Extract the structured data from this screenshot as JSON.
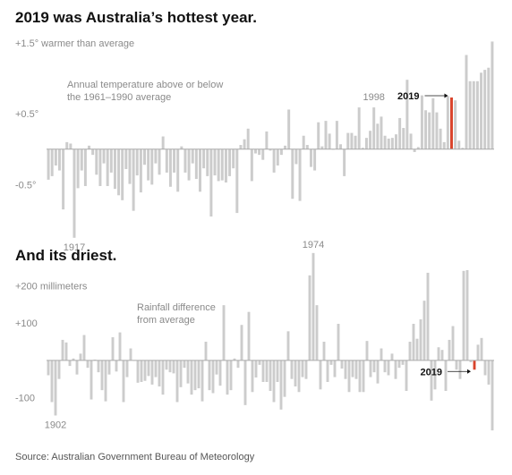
{
  "source": "Source: Australian Government Bureau of Meteorology",
  "colors": {
    "bar": "#cccccc",
    "highlight": "#d9442c",
    "axis": "#aaaaaa"
  },
  "chart_data": [
    {
      "type": "bar",
      "title": "2019 was Australia’s hottest year.",
      "note_lines": [
        "Annual temperature above or below",
        "the 1961–1990 average"
      ],
      "ylim": [
        -1.0,
        1.5
      ],
      "yticks": [
        {
          "value": 1.5,
          "label": "+1.5° warmer than average"
        },
        {
          "value": 0.5,
          "label": "+0.5°"
        },
        {
          "value": -0.5,
          "label": "-0.5°"
        }
      ],
      "x_start": 1910,
      "highlight_year": 2019,
      "annotations": [
        {
          "year": 1917,
          "label": "1917"
        },
        {
          "year": 1998,
          "label": "1998"
        },
        {
          "year": 2019,
          "label": "2019"
        }
      ],
      "values": [
        -0.43,
        -0.38,
        -0.23,
        -0.3,
        -0.85,
        0.1,
        0.08,
        -1.25,
        -0.55,
        -0.3,
        -0.52,
        0.05,
        -0.08,
        -0.36,
        -0.52,
        -0.2,
        -0.52,
        -0.33,
        -0.56,
        -0.65,
        -0.72,
        -0.28,
        -0.49,
        -0.87,
        -0.37,
        -0.61,
        -0.22,
        -0.44,
        -0.5,
        -0.2,
        -0.36,
        0.18,
        -0.33,
        -0.53,
        -0.33,
        -0.6,
        0.04,
        -0.33,
        -0.44,
        -0.2,
        -0.42,
        -0.6,
        -0.27,
        -0.38,
        -0.95,
        -0.37,
        -0.45,
        -0.44,
        -0.47,
        -0.38,
        -0.27,
        -0.9,
        0.06,
        0.14,
        0.29,
        -0.45,
        -0.06,
        -0.08,
        -0.15,
        0.25,
        -0.02,
        -0.33,
        -0.23,
        -0.08,
        0.05,
        0.56,
        -0.7,
        -0.21,
        -0.73,
        0.19,
        0.06,
        -0.25,
        -0.3,
        0.38,
        0.04,
        0.4,
        0.22,
        0.0,
        0.4,
        0.07,
        -0.38,
        0.23,
        0.23,
        0.19,
        0.59,
        0.02,
        0.16,
        0.26,
        0.59,
        0.36,
        0.46,
        0.19,
        0.15,
        0.16,
        0.21,
        0.44,
        0.3,
        0.98,
        0.22,
        -0.04,
        0.03,
        0.76,
        0.55,
        0.52,
        0.72,
        0.52,
        0.29,
        0.1,
        0.75,
        0.73,
        0.69,
        0.12,
        0.02,
        1.33,
        0.96,
        0.96,
        0.96,
        1.08,
        1.12,
        1.15,
        1.52
      ]
    },
    {
      "type": "bar",
      "title": "And its driest.",
      "note_lines": [
        "Rainfall difference",
        "from average"
      ],
      "ylim": [
        -190,
        290
      ],
      "yticks": [
        {
          "value": 200,
          "label": "+200 millimeters"
        },
        {
          "value": 100,
          "label": "+100"
        },
        {
          "value": -100,
          "label": "-100"
        }
      ],
      "x_start": 1900,
      "highlight_year": 2019,
      "annotations": [
        {
          "year": 1902,
          "label": "1902"
        },
        {
          "year": 1974,
          "label": "1974"
        },
        {
          "year": 2019,
          "label": "2019"
        }
      ],
      "values": [
        -40,
        -112,
        -148,
        -50,
        55,
        48,
        -15,
        5,
        -38,
        18,
        68,
        -20,
        -105,
        2,
        -32,
        -80,
        -110,
        -38,
        62,
        -30,
        75,
        -112,
        -45,
        32,
        0,
        -60,
        -58,
        -55,
        -42,
        -65,
        -45,
        -70,
        -92,
        -25,
        -32,
        -35,
        -112,
        -72,
        -20,
        -62,
        -92,
        -80,
        -75,
        -110,
        50,
        -80,
        -88,
        -38,
        -68,
        148,
        -92,
        -80,
        5,
        -20,
        95,
        -120,
        130,
        -85,
        -46,
        -12,
        -58,
        -58,
        -82,
        -112,
        -58,
        -132,
        -98,
        78,
        -50,
        -70,
        -85,
        -45,
        -50,
        228,
        288,
        148,
        -78,
        50,
        -58,
        -12,
        -45,
        98,
        -22,
        -50,
        -85,
        -45,
        -50,
        -85,
        -85,
        52,
        -45,
        -32,
        -62,
        32,
        -32,
        -40,
        18,
        -50,
        -20,
        -12,
        -82,
        50,
        98,
        58,
        110,
        160,
        235,
        -108,
        -78,
        35,
        28,
        -82,
        55,
        92,
        -25,
        -50,
        240,
        242,
        -5,
        -25,
        42,
        60,
        -40,
        -65,
        -188
      ]
    }
  ]
}
